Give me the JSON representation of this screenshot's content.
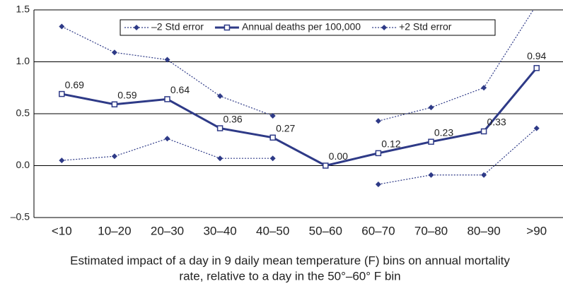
{
  "chart_data": {
    "type": "line",
    "categories": [
      "<10",
      "10–20",
      "20–30",
      "30–40",
      "40–50",
      "50–60",
      "60–70",
      "70–80",
      "80–90",
      ">90"
    ],
    "series": [
      {
        "name": "–2 Std error",
        "color": "#2e3a87",
        "style": "dotted",
        "marker": "diamond",
        "values": [
          0.05,
          0.09,
          0.26,
          0.07,
          0.07,
          null,
          -0.18,
          -0.09,
          -0.09,
          0.36
        ]
      },
      {
        "name": "Annual deaths per 100,000",
        "color": "#2e3a87",
        "style": "solid",
        "marker": "square",
        "values": [
          0.69,
          0.59,
          0.64,
          0.36,
          0.27,
          0,
          0.12,
          0.23,
          0.33,
          0.94
        ],
        "value_labels": [
          "0.69",
          "0.59",
          "0.64",
          "0.36",
          "0.27",
          "0.00",
          "0.12",
          "0.23",
          "0.33",
          "0.94"
        ]
      },
      {
        "name": "+2 Std error",
        "color": "#2e3a87",
        "style": "dotted",
        "marker": "diamond",
        "values": [
          1.34,
          1.09,
          1.02,
          0.67,
          0.48,
          null,
          0.43,
          0.56,
          0.75,
          1.55
        ]
      }
    ],
    "ylim": [
      -0.5,
      1.5
    ],
    "yticks": [
      {
        "value": -0.5,
        "label": "–0.5"
      },
      {
        "value": 0,
        "label": "0.0"
      },
      0.5,
      {
        "value": 1,
        "label": "1.0"
      },
      1.5
    ],
    "grid": true,
    "legend": "top",
    "x_label": [
      "Estimated impact of a day in 9 daily mean temperature (F) bins on annual mortality",
      "rate, relative to a day in the 50°–60° F bin"
    ]
  }
}
